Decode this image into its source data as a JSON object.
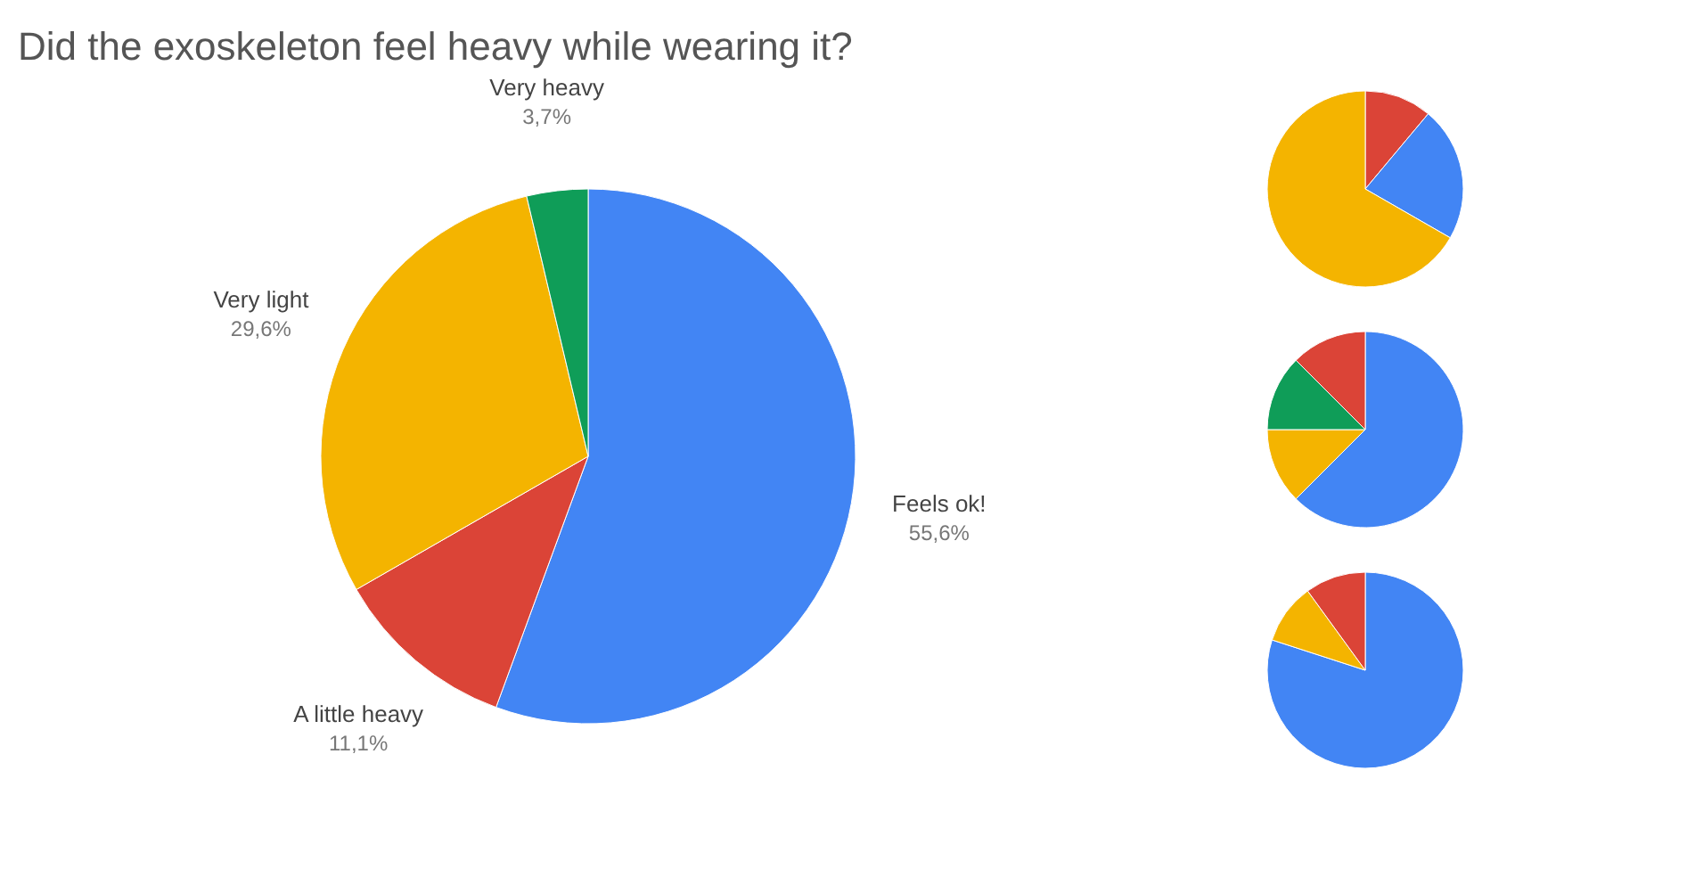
{
  "chart_data": [
    {
      "type": "pie",
      "title": "Did the exoskeleton feel heavy while wearing it?",
      "categories": [
        "Feels ok!",
        "A little heavy",
        "Very light",
        "Very heavy"
      ],
      "values": [
        55.6,
        11.1,
        29.6,
        3.7
      ],
      "colors": [
        "#4285f4",
        "#db4437",
        "#f4b400",
        "#0f9d58"
      ],
      "value_labels": [
        "55,6%",
        "11,1%",
        "29,6%",
        "3,7%"
      ],
      "legend": false
    },
    {
      "type": "pie",
      "categories": [
        null,
        null,
        null
      ],
      "values": [
        11.1,
        22.2,
        66.7
      ],
      "colors": [
        "#db4437",
        "#4285f4",
        "#f4b400"
      ],
      "legend": false
    },
    {
      "type": "pie",
      "categories": [
        null,
        null,
        null,
        null
      ],
      "values": [
        62.5,
        12.5,
        12.5,
        12.5
      ],
      "colors": [
        "#4285f4",
        "#f4b400",
        "#0f9d58",
        "#db4437"
      ],
      "legend": false
    },
    {
      "type": "pie",
      "categories": [
        null,
        null,
        null
      ],
      "values": [
        80,
        10,
        10
      ],
      "colors": [
        "#4285f4",
        "#f4b400",
        "#db4437"
      ],
      "legend": false
    }
  ]
}
